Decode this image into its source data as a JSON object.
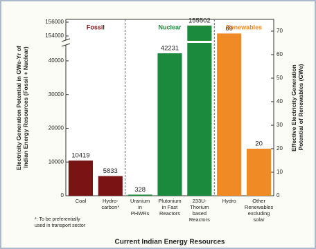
{
  "chart_data": {
    "type": "bar",
    "x_label": "Current Indian Energy Resources",
    "y_label": "Electricity Generation Potential in GWe-Yr of Indian Energy Resources (Fossil + Nuclear)",
    "y2_label": "Effective Electricity Generation Potential of Renewables (GWe)",
    "footnote": "*: To be preferentially used in transport sector",
    "categories": [
      "Coal",
      "Hydro-\ncarbon*",
      "Uranium\nin\nPHWRs",
      "Plutonium\nin Fast\nReactors",
      "233U-\nThorium\nbased\nReactors",
      "Hydro",
      "Other\nRenewables\nexcluding\nsolar"
    ],
    "series": [
      {
        "name": "Fossil",
        "color": "#7a1414",
        "values": [
          10419,
          5833,
          null,
          null,
          null,
          null,
          null
        ]
      },
      {
        "name": "Nuclear",
        "color": "#1c8a3c",
        "values": [
          null,
          null,
          328,
          42231,
          155502,
          null,
          null
        ]
      },
      {
        "name": "Renewables",
        "color": "#f08a24",
        "axis": "y2",
        "values": [
          null,
          null,
          null,
          null,
          null,
          69,
          20
        ]
      }
    ],
    "ylim": [
      0,
      156400
    ],
    "yaxis_break": [
      44500,
      153500
    ],
    "yticks": [
      0,
      10000,
      20000,
      30000,
      40000,
      154000,
      156000
    ],
    "y2lim": [
      0,
      75
    ],
    "y2ticks": [
      0,
      10,
      20,
      30,
      40,
      50,
      60,
      70
    ]
  }
}
